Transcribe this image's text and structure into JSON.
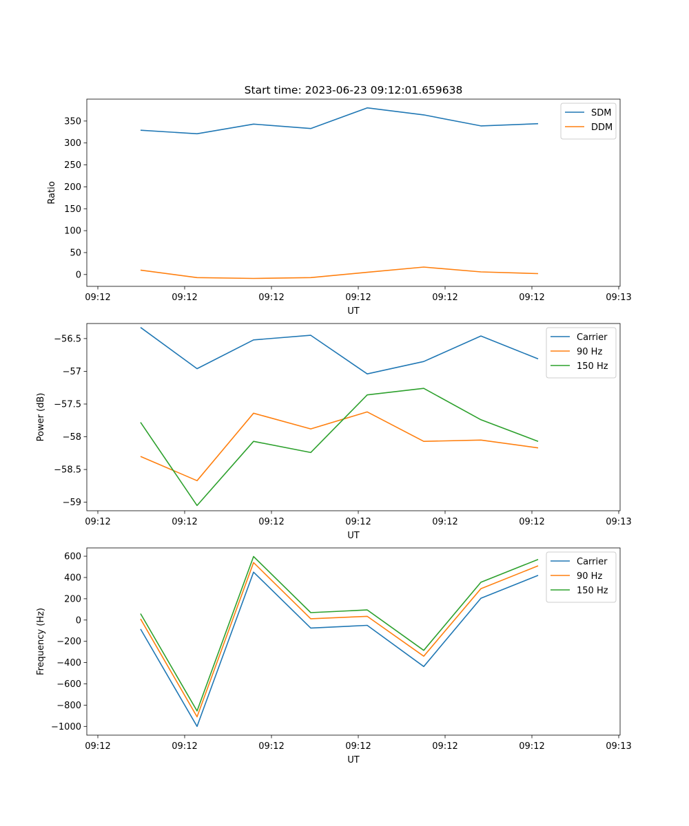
{
  "figure": {
    "title": "Start time: 2023-06-23 09:12:01.659638"
  },
  "chart_data": [
    {
      "type": "line",
      "title": "Start time: 2023-06-23 09:12:01.659638",
      "xlabel": "UT",
      "ylabel": "Ratio",
      "x_tick_labels": [
        "09:12",
        "09:12",
        "09:12",
        "09:12",
        "09:12",
        "09:12",
        "09:13"
      ],
      "y_ticks": [
        0,
        50,
        100,
        150,
        200,
        250,
        300,
        350
      ],
      "ylim": [
        -27,
        400
      ],
      "grid": false,
      "legend": "top-right",
      "x": [
        "09:12:05",
        "09:12:10",
        "09:12:15",
        "09:12:20",
        "09:12:25",
        "09:12:30",
        "09:12:35",
        "09:12:40"
      ],
      "series": [
        {
          "name": "SDM",
          "color": "#1f77b4",
          "values": [
            329,
            321,
            343,
            333,
            380,
            364,
            339,
            344
          ]
        },
        {
          "name": "DDM",
          "color": "#ff7f0e",
          "values": [
            10,
            -7,
            -9,
            -7,
            5,
            17,
            6,
            2
          ]
        }
      ]
    },
    {
      "type": "line",
      "xlabel": "UT",
      "ylabel": "Power (dB)",
      "x_tick_labels": [
        "09:12",
        "09:12",
        "09:12",
        "09:12",
        "09:12",
        "09:12",
        "09:13"
      ],
      "y_ticks": [
        -59.0,
        -58.5,
        -58.0,
        -57.5,
        -57.0,
        -56.5
      ],
      "ylim": [
        -59.13,
        -56.27
      ],
      "grid": false,
      "legend": "top-right",
      "x": [
        "09:12:05",
        "09:12:10",
        "09:12:15",
        "09:12:20",
        "09:12:25",
        "09:12:30",
        "09:12:35",
        "09:12:40"
      ],
      "series": [
        {
          "name": "Carrier",
          "color": "#1f77b4",
          "values": [
            -56.33,
            -56.96,
            -56.52,
            -56.45,
            -57.04,
            -56.85,
            -56.46,
            -56.81
          ]
        },
        {
          "name": "90 Hz",
          "color": "#ff7f0e",
          "values": [
            -58.3,
            -58.67,
            -57.64,
            -57.88,
            -57.62,
            -58.07,
            -58.05,
            -58.17
          ]
        },
        {
          "name": "150 Hz",
          "color": "#2ca02c",
          "values": [
            -57.78,
            -59.05,
            -58.07,
            -58.24,
            -57.36,
            -57.26,
            -57.74,
            -58.07
          ]
        }
      ]
    },
    {
      "type": "line",
      "xlabel": "UT",
      "ylabel": "Frequency (Hz)",
      "x_tick_labels": [
        "09:12",
        "09:12",
        "09:12",
        "09:12",
        "09:12",
        "09:12",
        "09:13"
      ],
      "y_ticks": [
        -1000,
        -800,
        -600,
        -400,
        -200,
        0,
        200,
        400,
        600
      ],
      "ylim": [
        -1082,
        678
      ],
      "grid": false,
      "legend": "top-right",
      "x": [
        "09:12:05",
        "09:12:10",
        "09:12:15",
        "09:12:20",
        "09:12:25",
        "09:12:30",
        "09:12:35",
        "09:12:40"
      ],
      "series": [
        {
          "name": "Carrier",
          "color": "#1f77b4",
          "values": [
            -85,
            -1000,
            450,
            -75,
            -50,
            -437,
            205,
            420
          ]
        },
        {
          "name": "90 Hz",
          "color": "#ff7f0e",
          "values": [
            10,
            -910,
            540,
            12,
            35,
            -340,
            295,
            510
          ]
        },
        {
          "name": "150 Hz",
          "color": "#2ca02c",
          "values": [
            60,
            -855,
            597,
            70,
            95,
            -285,
            355,
            570
          ]
        }
      ]
    }
  ]
}
